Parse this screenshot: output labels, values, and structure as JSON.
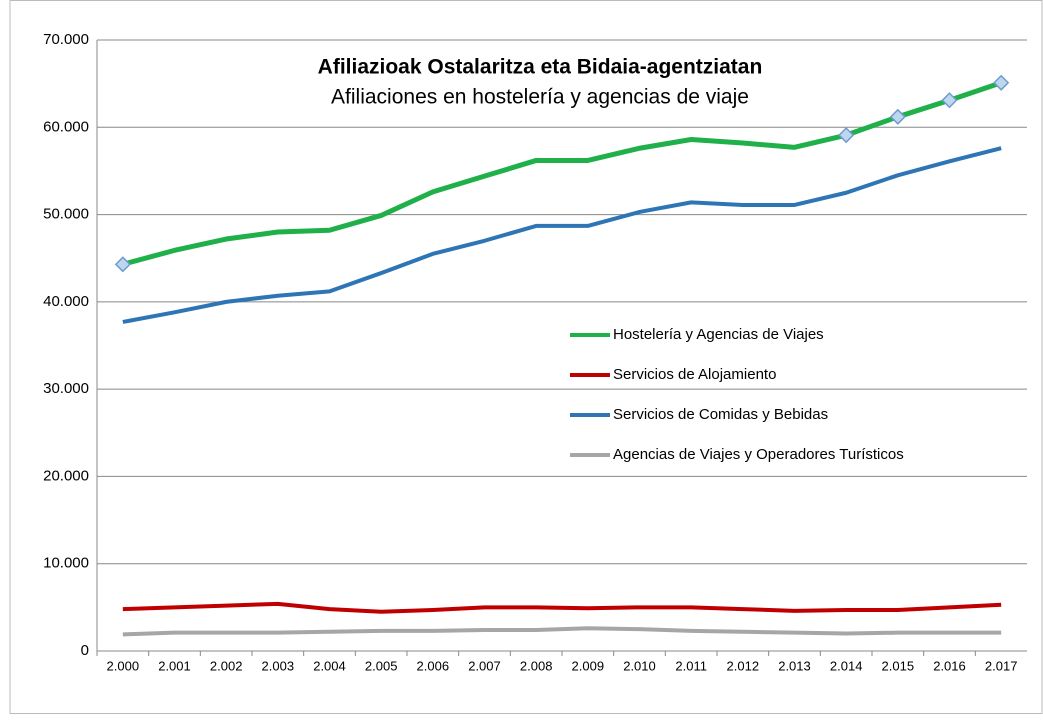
{
  "chart_data": {
    "type": "line",
    "title": "Afiliazioak Ostalaritza eta Bidaia-agentziatan",
    "subtitle": "Afiliaciones en hostelería y agencias de viaje",
    "categories": [
      "2.000",
      "2.001",
      "2.002",
      "2.003",
      "2.004",
      "2.005",
      "2.006",
      "2.007",
      "2.008",
      "2.009",
      "2.010",
      "2.011",
      "2.012",
      "2.013",
      "2.014",
      "2.015",
      "2.016",
      "2.017"
    ],
    "series": [
      {
        "name": "Hostelería y Agencias de Viajes",
        "color": "#1fb04a",
        "marker_indices": [
          0,
          14,
          15,
          16,
          17
        ],
        "values": [
          44300,
          45900,
          47200,
          48000,
          48200,
          49900,
          52600,
          54400,
          56200,
          56200,
          57600,
          58600,
          58200,
          57700,
          59100,
          61200,
          63100,
          65100
        ]
      },
      {
        "name": "Servicios de Alojamiento",
        "color": "#c00000",
        "values": [
          4800,
          5000,
          5200,
          5400,
          4800,
          4500,
          4700,
          5000,
          5000,
          4900,
          5000,
          5000,
          4800,
          4600,
          4700,
          4700,
          5000,
          5300
        ]
      },
      {
        "name": "Servicios de Comidas y Bebidas",
        "color": "#2e75b6",
        "values": [
          37700,
          38800,
          40000,
          40700,
          41200,
          43300,
          45500,
          47000,
          48700,
          48700,
          50300,
          51400,
          51100,
          51100,
          52500,
          54500,
          56100,
          57600
        ]
      },
      {
        "name": "Agencias de Viajes y Operadores Turísticos",
        "color": "#a6a6a6",
        "values": [
          1900,
          2100,
          2100,
          2100,
          2200,
          2300,
          2300,
          2400,
          2400,
          2600,
          2500,
          2300,
          2200,
          2100,
          2000,
          2100,
          2100,
          2100
        ]
      }
    ],
    "ylim": [
      0,
      70000
    ],
    "yticks": [
      0,
      {
        "value": 10000,
        "label": "10.000"
      },
      {
        "value": 20000,
        "label": "20.000"
      },
      {
        "value": 30000,
        "label": "30.000"
      },
      {
        "value": 40000,
        "label": "40.000"
      },
      {
        "value": 50000,
        "label": "50.000"
      },
      {
        "value": 60000,
        "label": "60.000"
      },
      {
        "value": 70000,
        "label": "70.000"
      }
    ],
    "grid": true
  }
}
